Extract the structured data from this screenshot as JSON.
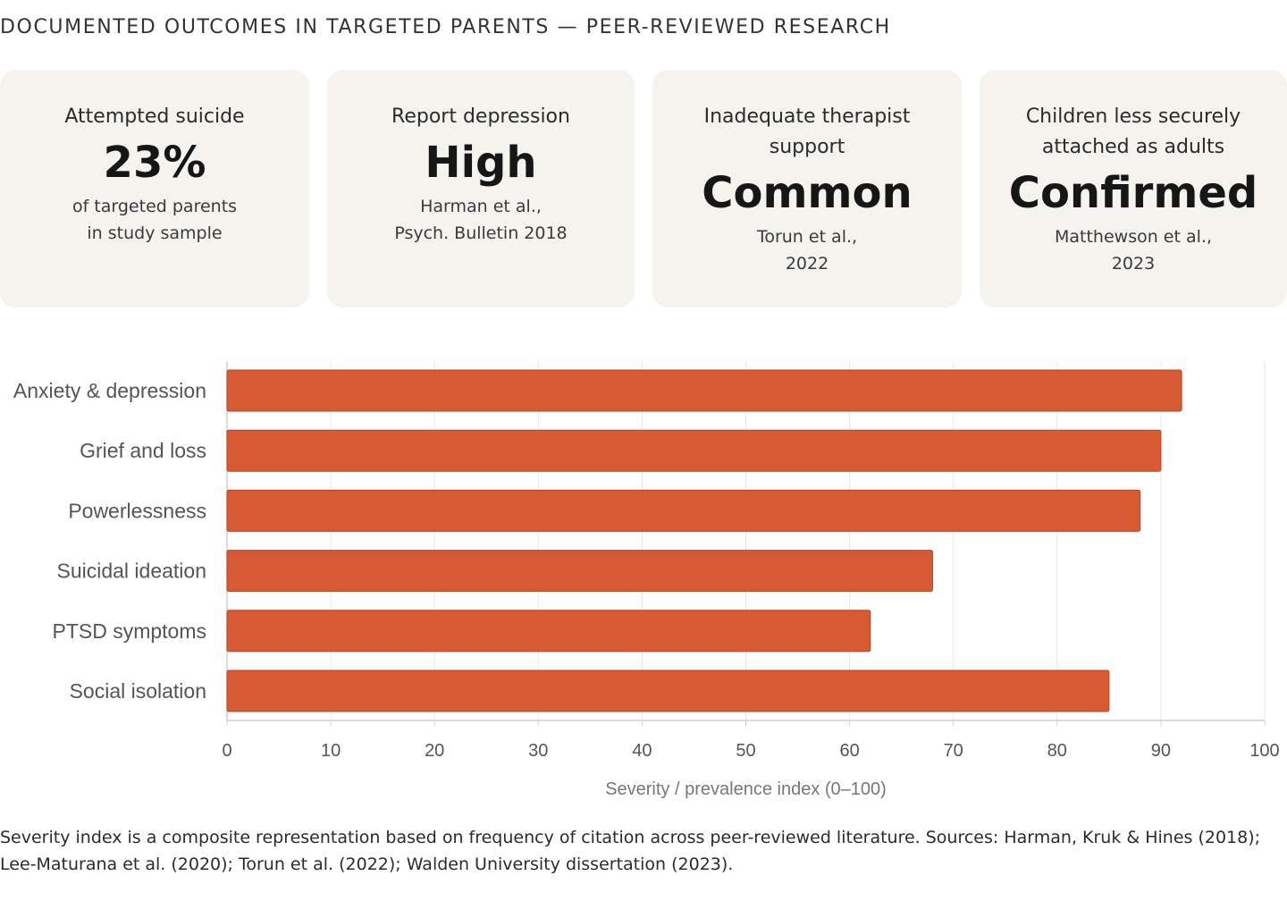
{
  "page_title": "DOCUMENTED OUTCOMES IN TARGETED PARENTS — PEER-REVIEWED RESEARCH",
  "cards": [
    {
      "label": "Attempted suicide",
      "value": "23%",
      "note": "of targeted parents\nin study sample"
    },
    {
      "label": "Report depression",
      "value": "High",
      "note": "Harman et al.,\nPsych. Bulletin 2018"
    },
    {
      "label": "Inadequate therapist support",
      "value": "Common",
      "note": "Torun et al.,\n2022"
    },
    {
      "label": "Children less securely attached as adults",
      "value": "Confirmed",
      "note": "Matthewson et al.,\n2023"
    }
  ],
  "chart_data": {
    "type": "bar",
    "orientation": "horizontal",
    "categories": [
      "Anxiety & depression",
      "Grief and loss",
      "Powerlessness",
      "Suicidal ideation",
      "PTSD symptoms",
      "Social isolation"
    ],
    "values": [
      92,
      90,
      88,
      68,
      62,
      85
    ],
    "xlabel": "Severity / prevalence index (0–100)",
    "ylabel": "",
    "xlim": [
      0,
      100
    ],
    "xticks": [
      0,
      10,
      20,
      30,
      40,
      50,
      60,
      70,
      80,
      90,
      100
    ],
    "grid": true,
    "legend": "none",
    "bar_color": "#d75a33"
  },
  "footnote": "Severity index is a composite representation based on frequency of citation across peer-reviewed literature. Sources: Harman, Kruk & Hines (2018); Lee-Maturana et al. (2020); Torun et al. (2022); Walden University dissertation (2023)."
}
